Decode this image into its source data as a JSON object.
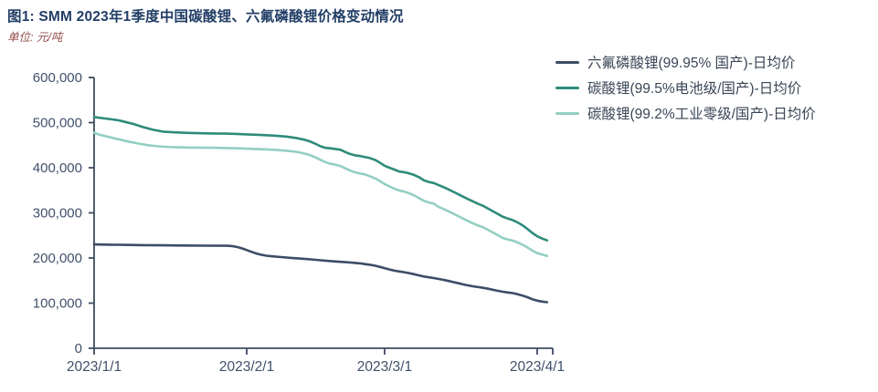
{
  "header": {
    "title": "图1: SMM 2023年1季度中国碳酸锂、六氟磷酸锂价格变动情况",
    "unit_label": "单位: 元/吨"
  },
  "colors": {
    "title": "#223e66",
    "unit": "#96524e",
    "axis": "#3e4c61",
    "tick_label": "#41506a"
  },
  "legend": {
    "items": [
      {
        "label": "六氟磷酸锂(99.95% 国产)-日均价",
        "color": "#3d4c66"
      },
      {
        "label": "碳酸锂(99.5%电池级/国产)-日均价",
        "color": "#2e8b7b"
      },
      {
        "label": "碳酸锂(99.2%工业零级/国产)-日均价",
        "color": "#93cfc2"
      }
    ]
  },
  "chart_data": {
    "type": "line",
    "title": "SMM 2023年1季度中国碳酸锂、六氟磷酸锂价格变动情况",
    "xlabel": "",
    "ylabel": "元/吨",
    "ylim": [
      0,
      600000
    ],
    "grid": false,
    "legend_position": "top-right",
    "x_unit": "days since 2023/1/1",
    "ytick_values": [
      0,
      100000,
      200000,
      300000,
      400000,
      500000,
      600000
    ],
    "ytick_labels": [
      "0",
      "100,000",
      "200,000",
      "300,000",
      "400,000",
      "500,000",
      "600,000"
    ],
    "xticks": [
      {
        "day": 0,
        "label": "2023/1/1"
      },
      {
        "day": 31,
        "label": "2023/2/1"
      },
      {
        "day": 59,
        "label": "2023/3/1"
      },
      {
        "day": 90,
        "label": "2023/4/1"
      }
    ],
    "series": [
      {
        "name": "六氟磷酸锂(99.95% 国产)-日均价",
        "color": "#3d4c66",
        "points": [
          [
            0,
            230000
          ],
          [
            3,
            229500
          ],
          [
            6,
            229000
          ],
          [
            10,
            228500
          ],
          [
            14,
            228000
          ],
          [
            18,
            227600
          ],
          [
            23,
            227300
          ],
          [
            27,
            227000
          ],
          [
            28,
            226400
          ],
          [
            29,
            224500
          ],
          [
            30,
            221500
          ],
          [
            31,
            217500
          ],
          [
            32,
            213500
          ],
          [
            33,
            210000
          ],
          [
            34,
            207000
          ],
          [
            35,
            205000
          ],
          [
            36,
            203800
          ],
          [
            38,
            202000
          ],
          [
            40,
            200200
          ],
          [
            42,
            198500
          ],
          [
            44,
            197000
          ],
          [
            46,
            195000
          ],
          [
            48,
            193200
          ],
          [
            50,
            191500
          ],
          [
            52,
            190000
          ],
          [
            54,
            188000
          ],
          [
            55,
            186500
          ],
          [
            56,
            185000
          ],
          [
            57,
            183000
          ],
          [
            58,
            180500
          ],
          [
            59,
            177500
          ],
          [
            60,
            174500
          ],
          [
            61,
            172000
          ],
          [
            62,
            170200
          ],
          [
            63,
            168500
          ],
          [
            64,
            166500
          ],
          [
            65,
            164000
          ],
          [
            66,
            161500
          ],
          [
            67,
            159000
          ],
          [
            68,
            157200
          ],
          [
            69,
            155500
          ],
          [
            70,
            153500
          ],
          [
            71,
            151500
          ],
          [
            72,
            149000
          ],
          [
            73,
            146500
          ],
          [
            74,
            144000
          ],
          [
            75,
            141500
          ],
          [
            76,
            139200
          ],
          [
            77,
            137200
          ],
          [
            78,
            135500
          ],
          [
            79,
            134000
          ],
          [
            80,
            132000
          ],
          [
            81,
            129500
          ],
          [
            82,
            127200
          ],
          [
            83,
            125200
          ],
          [
            84,
            123700
          ],
          [
            85,
            122200
          ],
          [
            86,
            119700
          ],
          [
            87,
            116700
          ],
          [
            88,
            113200
          ],
          [
            89,
            108700
          ],
          [
            90,
            105500
          ],
          [
            91,
            103500
          ],
          [
            92,
            102000
          ]
        ]
      },
      {
        "name": "碳酸锂(99.5%电池级/国产)-日均价",
        "color": "#2e8b7b",
        "points": [
          [
            0,
            512500
          ],
          [
            1,
            511000
          ],
          [
            3,
            508000
          ],
          [
            5,
            505000
          ],
          [
            6,
            502500
          ],
          [
            8,
            497000
          ],
          [
            10,
            490000
          ],
          [
            12,
            484000
          ],
          [
            14,
            480000
          ],
          [
            16,
            478500
          ],
          [
            18,
            477500
          ],
          [
            20,
            477000
          ],
          [
            24,
            476000
          ],
          [
            27,
            475500
          ],
          [
            29,
            475000
          ],
          [
            31,
            474000
          ],
          [
            34,
            472500
          ],
          [
            37,
            471000
          ],
          [
            39,
            469000
          ],
          [
            41,
            466000
          ],
          [
            43,
            461500
          ],
          [
            44,
            457500
          ],
          [
            45,
            453000
          ],
          [
            46,
            447500
          ],
          [
            47,
            444000
          ],
          [
            48,
            443000
          ],
          [
            50,
            440000
          ],
          [
            51,
            435000
          ],
          [
            52,
            430500
          ],
          [
            53,
            427500
          ],
          [
            54,
            426000
          ],
          [
            56,
            421500
          ],
          [
            57,
            417500
          ],
          [
            58,
            411500
          ],
          [
            59,
            404500
          ],
          [
            60,
            400000
          ],
          [
            61,
            396000
          ],
          [
            62,
            391500
          ],
          [
            63,
            390000
          ],
          [
            64,
            387500
          ],
          [
            65,
            384000
          ],
          [
            66,
            379000
          ],
          [
            67,
            372000
          ],
          [
            68,
            368500
          ],
          [
            69,
            366000
          ],
          [
            70,
            361500
          ],
          [
            71,
            357000
          ],
          [
            72,
            352000
          ],
          [
            73,
            346500
          ],
          [
            74,
            341000
          ],
          [
            75,
            335500
          ],
          [
            76,
            330000
          ],
          [
            77,
            325000
          ],
          [
            78,
            320000
          ],
          [
            79,
            315500
          ],
          [
            80,
            309500
          ],
          [
            81,
            303500
          ],
          [
            82,
            297500
          ],
          [
            83,
            291500
          ],
          [
            84,
            287500
          ],
          [
            85,
            284000
          ],
          [
            86,
            279000
          ],
          [
            87,
            272500
          ],
          [
            88,
            264500
          ],
          [
            89,
            255500
          ],
          [
            90,
            248000
          ],
          [
            91,
            243000
          ],
          [
            92,
            239000
          ]
        ]
      },
      {
        "name": "碳酸锂(99.2%工业零级/国产)-日均价",
        "color": "#93cfc2",
        "points": [
          [
            0,
            477500
          ],
          [
            1,
            473500
          ],
          [
            3,
            468000
          ],
          [
            5,
            463000
          ],
          [
            7,
            458000
          ],
          [
            9,
            453500
          ],
          [
            11,
            450000
          ],
          [
            13,
            447500
          ],
          [
            15,
            446000
          ],
          [
            17,
            445200
          ],
          [
            20,
            444700
          ],
          [
            24,
            444200
          ],
          [
            27,
            443700
          ],
          [
            29,
            443000
          ],
          [
            31,
            442200
          ],
          [
            34,
            441000
          ],
          [
            37,
            439500
          ],
          [
            39,
            437800
          ],
          [
            41,
            435300
          ],
          [
            42,
            433300
          ],
          [
            43,
            430800
          ],
          [
            44,
            427300
          ],
          [
            45,
            422800
          ],
          [
            46,
            417300
          ],
          [
            47,
            412300
          ],
          [
            48,
            408800
          ],
          [
            49,
            406800
          ],
          [
            50,
            403800
          ],
          [
            51,
            398800
          ],
          [
            52,
            393800
          ],
          [
            53,
            389800
          ],
          [
            54,
            387300
          ],
          [
            55,
            385300
          ],
          [
            56,
            381300
          ],
          [
            57,
            376800
          ],
          [
            58,
            370800
          ],
          [
            59,
            364000
          ],
          [
            60,
            358500
          ],
          [
            61,
            353500
          ],
          [
            62,
            349500
          ],
          [
            63,
            347000
          ],
          [
            64,
            343500
          ],
          [
            65,
            338500
          ],
          [
            66,
            332500
          ],
          [
            67,
            326500
          ],
          [
            68,
            323000
          ],
          [
            69,
            320500
          ],
          [
            70,
            313000
          ],
          [
            71,
            308500
          ],
          [
            72,
            303500
          ],
          [
            73,
            298000
          ],
          [
            74,
            292500
          ],
          [
            75,
            287000
          ],
          [
            76,
            281500
          ],
          [
            77,
            276500
          ],
          [
            78,
            272000
          ],
          [
            79,
            268000
          ],
          [
            80,
            262500
          ],
          [
            81,
            256500
          ],
          [
            82,
            250500
          ],
          [
            83,
            244500
          ],
          [
            84,
            241000
          ],
          [
            85,
            238500
          ],
          [
            86,
            234500
          ],
          [
            87,
            229500
          ],
          [
            88,
            223500
          ],
          [
            89,
            216500
          ],
          [
            90,
            211000
          ],
          [
            91,
            207500
          ],
          [
            92,
            204500
          ]
        ]
      }
    ]
  }
}
